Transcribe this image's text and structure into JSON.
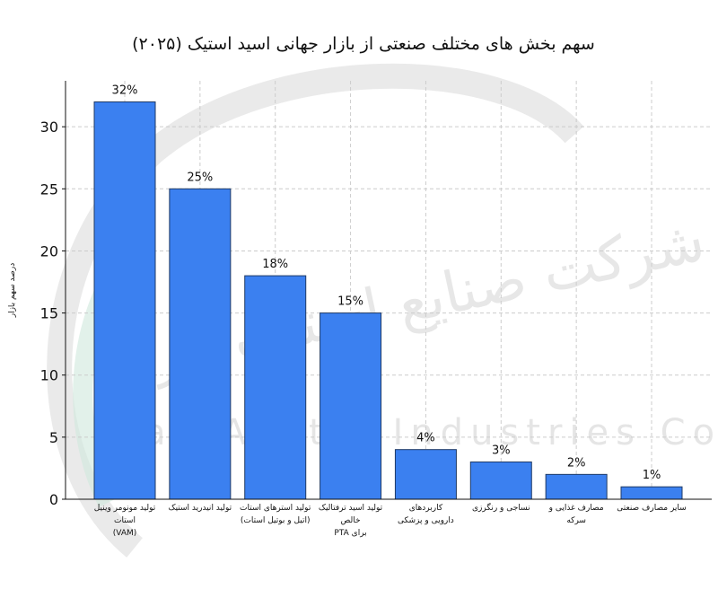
{
  "chart_data": {
    "type": "bar",
    "title": "سهم بخش های مختلف صنعتی از بازار جهانی اسید استیک (۲۰۲۵)",
    "y_label": "درصد سهم بازار",
    "categories": [
      "تولید مونومر وینیل استات\n(VAM)",
      "تولید انیدرید استیک",
      "تولید استرهای استات\n(اتیل و بوتیل استات)",
      "تولید اسید ترفتالیک خالص\nبرای PTA",
      "کاربردهای\nدارویی و پزشکی",
      "نساجی و رنگرزی",
      "مصارف غذایی و\nسرکه",
      "سایر مصارف صنعتی"
    ],
    "values": [
      32,
      25,
      18,
      15,
      4,
      3,
      2,
      1
    ],
    "value_labels": [
      "32%",
      "25%",
      "18%",
      "15%",
      "4%",
      "3%",
      "2%",
      "1%"
    ],
    "color": "#3b80f0",
    "edge_color": "#1f3a66",
    "ylim": [
      0,
      33.7
    ],
    "yticks": [
      0,
      5,
      10,
      15,
      20,
      25,
      30
    ],
    "grid": true,
    "watermark": [
      "شرکت صنایع استیک ایران",
      "Iran Acetic Industries Co"
    ]
  }
}
